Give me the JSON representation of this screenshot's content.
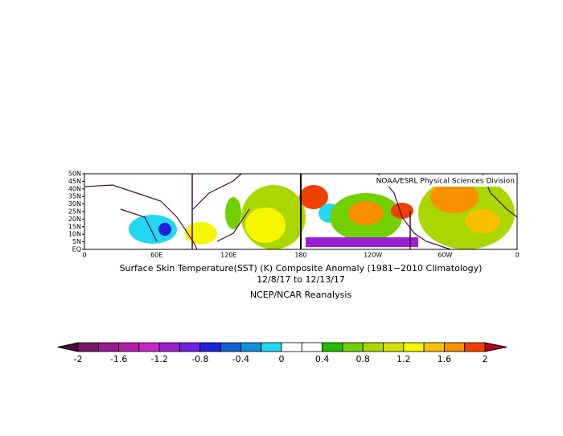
{
  "map": {
    "title": "Surface Skin Temperature(SST) (K) Composite Anomaly (1981−2010 Climatology)",
    "date_range": "12/8/17  to 12/13/17",
    "source": "NCEP/NCAR Reanalysis",
    "credit": "NOAA/ESRL Physical Sciences Division",
    "lat_labels": [
      "EQ",
      "5N",
      "10N",
      "15N",
      "20N",
      "25N",
      "30N",
      "35N",
      "40N",
      "45N",
      "50N"
    ],
    "lon_labels": [
      "0",
      "60E",
      "120E",
      "180",
      "120W",
      "60W",
      "0"
    ]
  },
  "colorbar": {
    "labels": [
      -2,
      -1.6,
      -1.2,
      -0.8,
      -0.4,
      0,
      0.4,
      0.8,
      1.2,
      1.6,
      2
    ],
    "under_color": "#4b0a3c",
    "over_color": "#b0001e",
    "colors": [
      "#7a1467",
      "#9a1a90",
      "#b41ea8",
      "#c828c8",
      "#9a20d2",
      "#7020e0",
      "#2020d8",
      "#1060d0",
      "#1090d8",
      "#20d8f0",
      "#ffffff",
      "#ffffff",
      "#20c000",
      "#70d000",
      "#a8d800",
      "#d4e000",
      "#f6f600",
      "#f8c000",
      "#f89000",
      "#f04000"
    ]
  }
}
